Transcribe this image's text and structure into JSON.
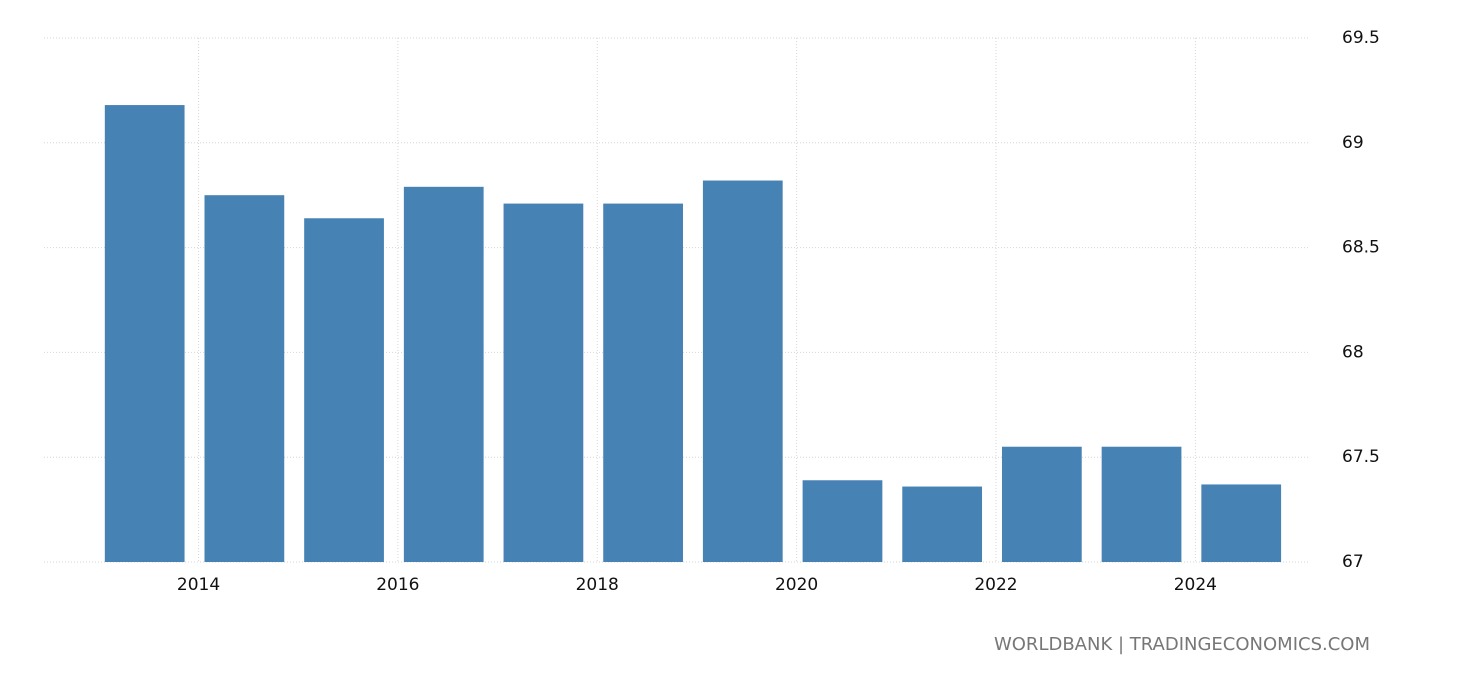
{
  "chart_data": {
    "type": "bar",
    "x": [
      2013,
      2014,
      2015,
      2016,
      2017,
      2018,
      2019,
      2020,
      2021,
      2022,
      2023,
      2024
    ],
    "values": [
      69.18,
      68.75,
      68.64,
      68.79,
      68.71,
      68.71,
      68.82,
      67.39,
      67.36,
      67.55,
      67.55,
      67.37
    ],
    "color": "#4682b4",
    "xlim": [
      2012.45,
      2025.15
    ],
    "xticks": [
      2014,
      2016,
      2018,
      2020,
      2022,
      2024
    ],
    "ylim": [
      67,
      69.5
    ],
    "yticks": [
      67,
      67.5,
      68,
      68.5,
      69,
      69.5
    ],
    "grid": true,
    "source": "WORLDBANK | TRADINGECONOMICS.COM"
  }
}
